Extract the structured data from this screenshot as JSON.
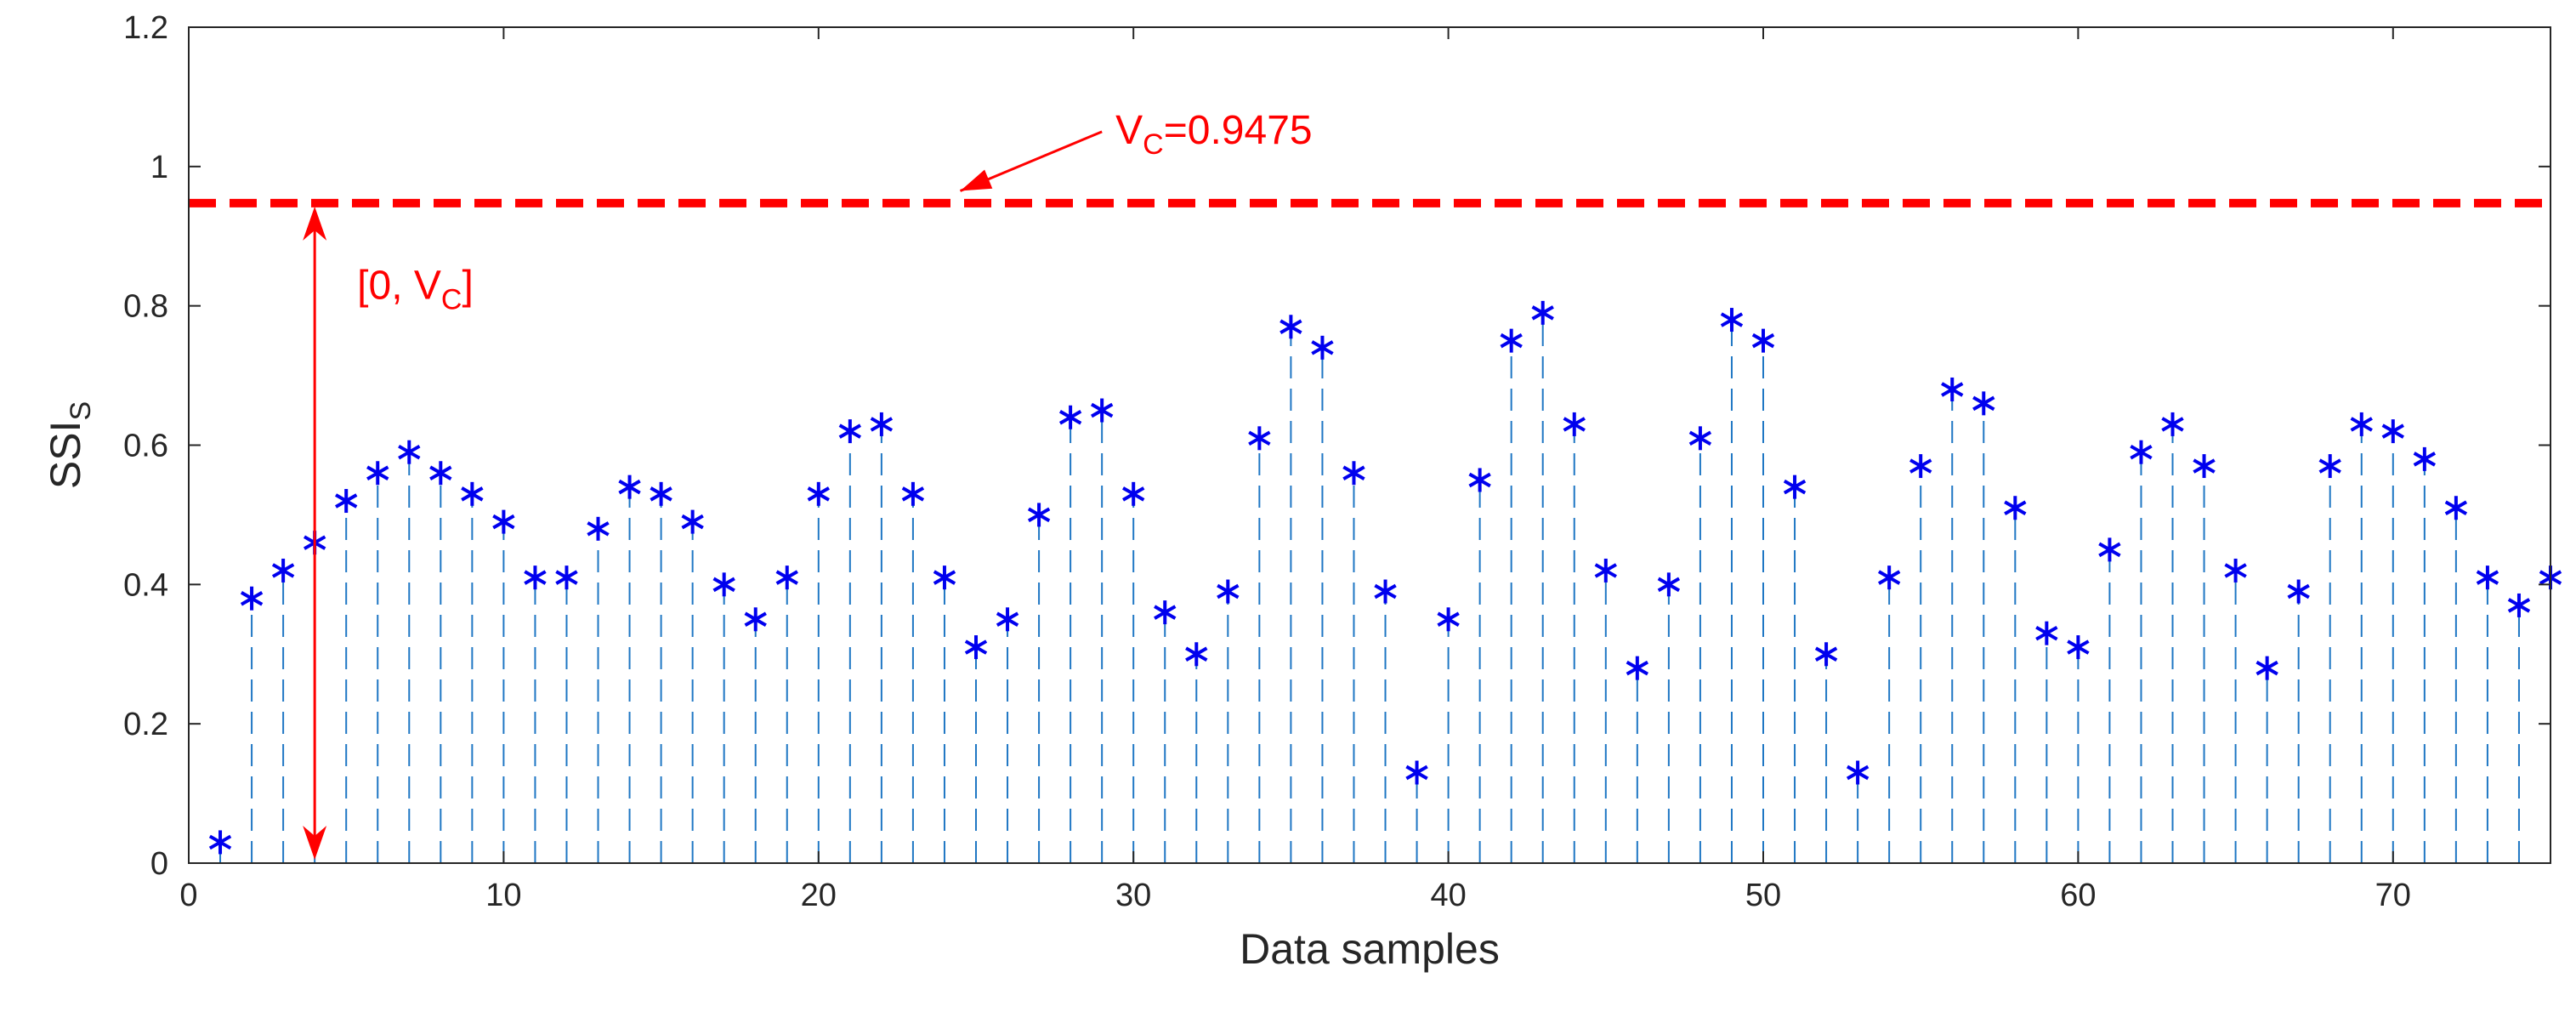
{
  "chart_data": {
    "type": "stem",
    "title": "",
    "xlabel": "Data samples",
    "ylabel_main": "SSI",
    "ylabel_sub": "S",
    "xlim": [
      0,
      75
    ],
    "ylim": [
      0,
      1.2
    ],
    "xticks": [
      0,
      10,
      20,
      30,
      40,
      50,
      60,
      70
    ],
    "yticks": [
      0,
      0.2,
      0.4,
      0.6,
      0.8,
      1,
      1.2
    ],
    "ytick_labels": [
      "0",
      "0.2",
      "0.4",
      "0.6",
      "0.8",
      "1",
      "1.2"
    ],
    "grid": false,
    "series": [
      {
        "name": "SSI_S",
        "marker": "*",
        "color": "#0000ee",
        "stem_color": "#1f77c4",
        "x": [
          1,
          2,
          3,
          4,
          5,
          6,
          7,
          8,
          9,
          10,
          11,
          12,
          13,
          14,
          15,
          16,
          17,
          18,
          19,
          20,
          21,
          22,
          23,
          24,
          25,
          26,
          27,
          28,
          29,
          30,
          31,
          32,
          33,
          34,
          35,
          36,
          37,
          38,
          39,
          40,
          41,
          42,
          43,
          44,
          45,
          46,
          47,
          48,
          49,
          50,
          51,
          52,
          53,
          54,
          55,
          56,
          57,
          58,
          59,
          60,
          61,
          62,
          63,
          64,
          65,
          66,
          67,
          68,
          69,
          70,
          71,
          72,
          73,
          74,
          75
        ],
        "values": [
          0.03,
          0.38,
          0.42,
          0.46,
          0.52,
          0.56,
          0.59,
          0.56,
          0.53,
          0.49,
          0.41,
          0.41,
          0.48,
          0.54,
          0.53,
          0.49,
          0.4,
          0.35,
          0.41,
          0.53,
          0.62,
          0.63,
          0.53,
          0.41,
          0.31,
          0.35,
          0.5,
          0.64,
          0.65,
          0.53,
          0.36,
          0.3,
          0.39,
          0.61,
          0.77,
          0.74,
          0.56,
          0.39,
          0.13,
          0.35,
          0.55,
          0.75,
          0.79,
          0.63,
          0.42,
          0.28,
          0.4,
          0.61,
          0.78,
          0.75,
          0.54,
          0.3,
          0.13,
          0.41,
          0.57,
          0.68,
          0.66,
          0.51,
          0.33,
          0.31,
          0.45,
          0.59,
          0.63,
          0.57,
          0.42,
          0.28,
          0.39,
          0.57,
          0.63,
          0.62,
          0.58,
          0.51,
          0.41,
          0.37,
          0.41
        ]
      }
    ],
    "threshold": {
      "value": 0.9475,
      "label_main": "V",
      "label_sub": "C",
      "label_value": "=0.9475",
      "color": "#ff0000"
    },
    "interval_annotation": {
      "x": 4,
      "from": 0,
      "to": 0.9475,
      "label_open": "[0, V",
      "label_sub": "C",
      "label_close": "]"
    },
    "arrow_pointer": {
      "tail": [
        29,
        1.05
      ],
      "head": [
        24.5,
        0.965
      ]
    }
  }
}
